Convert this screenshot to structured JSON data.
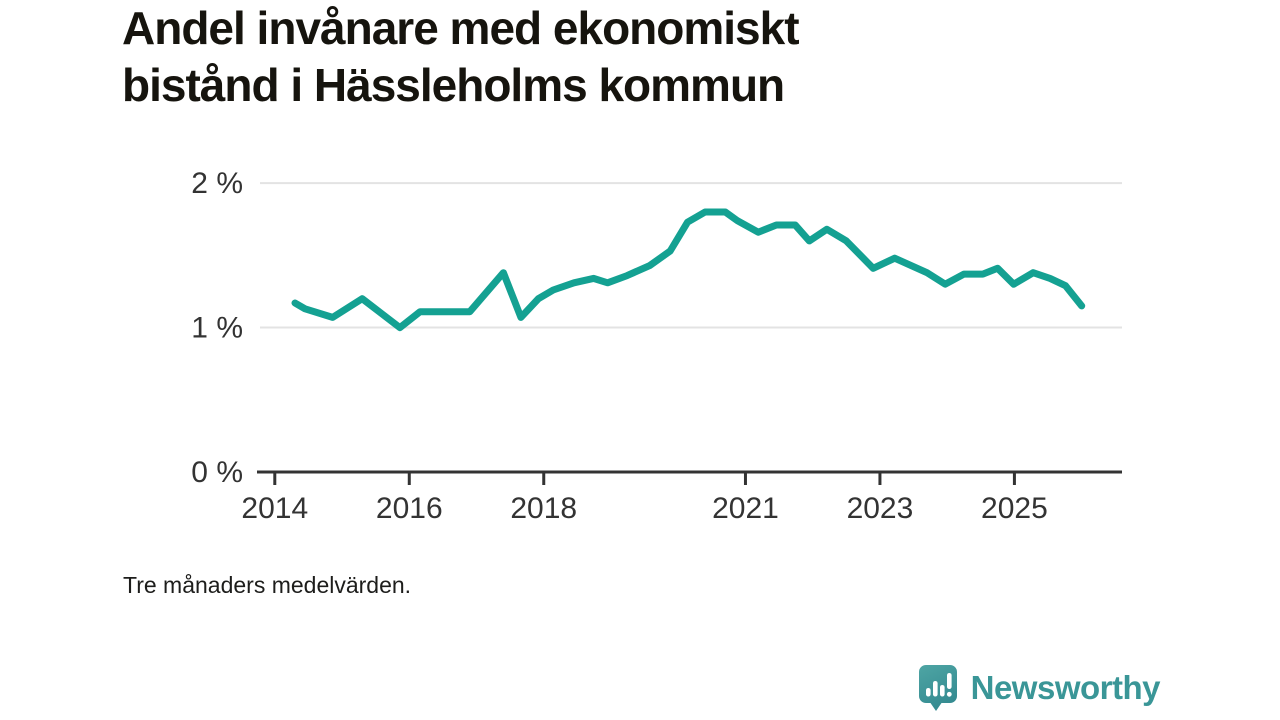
{
  "title": "Andel invånare med ekonomiskt bistånd i Hässleholms kommun",
  "title_lines": [
    "Andel invånare med ekonomiskt",
    "bistånd i Hässleholms kommun"
  ],
  "caption": "Tre månaders medelvärden.",
  "branding": {
    "name": "Newsworthy",
    "icon": "newsworthy-speech-bubble-chart-icon"
  },
  "colors": {
    "line": "#14a192",
    "grid": "#e3e3e3",
    "axis": "#333333",
    "tick_text": "#333333",
    "title_text": "#16140e",
    "caption_text": "#1d1d1b",
    "brand_teal": "#3a9697",
    "brand_bubble_top": "#4ea5a4",
    "brand_bubble_bottom": "#358b91"
  },
  "chart_data": {
    "type": "line",
    "title": "Andel invånare med ekonomiskt bistånd i Hässleholms kommun",
    "subtitle": "Tre månaders medelvärden.",
    "unit": "%",
    "xlabel": "",
    "ylabel": "",
    "xlim": [
      2013.78,
      2026.6
    ],
    "ylim": [
      0,
      2.07
    ],
    "grid": "horizontal-only",
    "legend": "none",
    "x_ticks": [
      {
        "value": 2014,
        "label": "2014"
      },
      {
        "value": 2016,
        "label": "2016"
      },
      {
        "value": 2018,
        "label": "2018"
      },
      {
        "value": 2021,
        "label": "2021"
      },
      {
        "value": 2023,
        "label": "2023"
      },
      {
        "value": 2025,
        "label": "2025"
      }
    ],
    "y_ticks": [
      {
        "value": 0,
        "label": "0 %"
      },
      {
        "value": 1,
        "label": "1 %"
      },
      {
        "value": 2,
        "label": "2 %"
      }
    ],
    "series": [
      {
        "name": "Andel invånare med ekonomiskt bistånd",
        "x": [
          2014.3,
          2014.45,
          2014.86,
          2015.3,
          2015.86,
          2016.16,
          2016.9,
          2017.4,
          2017.66,
          2017.92,
          2018.14,
          2018.45,
          2018.74,
          2018.95,
          2019.24,
          2019.58,
          2019.88,
          2020.14,
          2020.4,
          2020.7,
          2020.88,
          2021.19,
          2021.46,
          2021.74,
          2021.95,
          2022.21,
          2022.5,
          2022.9,
          2023.22,
          2023.7,
          2023.97,
          2024.25,
          2024.53,
          2024.75,
          2024.99,
          2025.28,
          2025.53,
          2025.76,
          2026.0
        ],
        "y": [
          1.17,
          1.13,
          1.07,
          1.2,
          1.0,
          1.11,
          1.11,
          1.38,
          1.07,
          1.2,
          1.26,
          1.31,
          1.34,
          1.31,
          1.36,
          1.43,
          1.53,
          1.73,
          1.8,
          1.8,
          1.74,
          1.66,
          1.71,
          1.71,
          1.6,
          1.68,
          1.6,
          1.41,
          1.48,
          1.38,
          1.3,
          1.37,
          1.37,
          1.41,
          1.3,
          1.38,
          1.34,
          1.29,
          1.15
        ]
      }
    ]
  }
}
